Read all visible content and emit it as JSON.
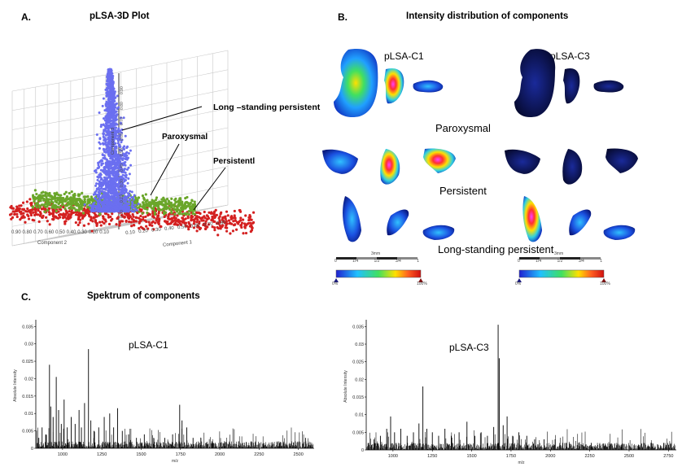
{
  "colors": {
    "cloud_blue": "#6b6ff0",
    "cloud_green": "#6aa62a",
    "cloud_red": "#d42020",
    "tissue_dark": "#0b1040"
  },
  "panels": {
    "a": {
      "letter": "A.",
      "title": "pLSA-3D Plot"
    },
    "b": {
      "letter": "B.",
      "title": "Intensity distribution of components"
    },
    "c": {
      "letter": "C.",
      "title": "Spektrum of components"
    }
  },
  "plot3d": {
    "annotations": [
      "Long –standing persistent",
      "Paroxysmal",
      "Persistentl"
    ],
    "axis1_label": "Component 1",
    "axis2_label": "Component 2",
    "axis3_label": "Component 3",
    "axis1_ticks": [
      "0.10",
      "0.20",
      "0.30",
      "0.40",
      "0.50",
      "0.60",
      "0.70",
      "0.80"
    ],
    "axis2_ticks": [
      "0.90",
      "0.80",
      "0.70",
      "0.60",
      "0.50",
      "0.40",
      "0.30",
      "0.20",
      "0.10"
    ],
    "axis3_ticks": [
      "0.10",
      "0.20",
      "0.30",
      "0.40",
      "0.50",
      "0.60",
      "0.70",
      "0.80",
      "0.90"
    ]
  },
  "intensity": {
    "component_labels": [
      "pLSA-C1",
      "pLSA-C3"
    ],
    "row_labels": [
      "Paroxysmal",
      "Persistent",
      "Long-standing persistent"
    ],
    "scalebar": {
      "label": "3mm",
      "ticks": [
        "0",
        "1/4",
        "1/2",
        "3/4",
        "1"
      ]
    },
    "colorbar": {
      "min": "0%",
      "max": "100%"
    }
  },
  "chart_data": [
    {
      "type": "bar",
      "title": "pLSA-C1",
      "xlabel": "m/z",
      "ylabel": "Absolute Intensity",
      "xlim": [
        830,
        2600
      ],
      "ylim": [
        0,
        0.036
      ],
      "xticks": [
        "1000",
        "1250",
        "1500",
        "1750",
        "2000",
        "2250",
        "2500"
      ],
      "yticks": [
        "0",
        "0.005",
        "0.01",
        "0.015",
        "0.02",
        "0.025",
        "0.03",
        "0.035"
      ],
      "peaks": [
        {
          "x": 845,
          "y": 0.003
        },
        {
          "x": 870,
          "y": 0.006
        },
        {
          "x": 895,
          "y": 0.004
        },
        {
          "x": 917,
          "y": 0.024
        },
        {
          "x": 925,
          "y": 0.012
        },
        {
          "x": 940,
          "y": 0.009
        },
        {
          "x": 960,
          "y": 0.0205
        },
        {
          "x": 975,
          "y": 0.011
        },
        {
          "x": 992,
          "y": 0.007
        },
        {
          "x": 1010,
          "y": 0.014
        },
        {
          "x": 1030,
          "y": 0.006
        },
        {
          "x": 1055,
          "y": 0.009
        },
        {
          "x": 1080,
          "y": 0.007
        },
        {
          "x": 1105,
          "y": 0.011
        },
        {
          "x": 1120,
          "y": 0.006
        },
        {
          "x": 1140,
          "y": 0.013
        },
        {
          "x": 1165,
          "y": 0.0285
        },
        {
          "x": 1180,
          "y": 0.008
        },
        {
          "x": 1200,
          "y": 0.005
        },
        {
          "x": 1230,
          "y": 0.006
        },
        {
          "x": 1265,
          "y": 0.009
        },
        {
          "x": 1300,
          "y": 0.01
        },
        {
          "x": 1325,
          "y": 0.006
        },
        {
          "x": 1350,
          "y": 0.0115
        },
        {
          "x": 1380,
          "y": 0.005
        },
        {
          "x": 1420,
          "y": 0.004
        },
        {
          "x": 1470,
          "y": 0.003
        },
        {
          "x": 1520,
          "y": 0.004
        },
        {
          "x": 1580,
          "y": 0.003
        },
        {
          "x": 1650,
          "y": 0.003
        },
        {
          "x": 1700,
          "y": 0.004
        },
        {
          "x": 1745,
          "y": 0.0125
        },
        {
          "x": 1760,
          "y": 0.008
        },
        {
          "x": 1790,
          "y": 0.006
        },
        {
          "x": 1830,
          "y": 0.003
        },
        {
          "x": 1880,
          "y": 0.003
        },
        {
          "x": 1950,
          "y": 0.002
        },
        {
          "x": 2030,
          "y": 0.002
        },
        {
          "x": 2120,
          "y": 0.002
        },
        {
          "x": 2200,
          "y": 0.002
        },
        {
          "x": 2280,
          "y": 0.0015
        },
        {
          "x": 2380,
          "y": 0.0015
        },
        {
          "x": 2480,
          "y": 0.002
        },
        {
          "x": 2545,
          "y": 0.003
        }
      ]
    },
    {
      "type": "bar",
      "title": "pLSA-C3",
      "xlabel": "m/z",
      "ylabel": "Absolute Intensity",
      "xlim": [
        830,
        2800
      ],
      "ylim": [
        0,
        0.036
      ],
      "xticks": [
        "1000",
        "1250",
        "1500",
        "1750",
        "2000",
        "2250",
        "2500",
        "2750"
      ],
      "yticks": [
        "0",
        "0.005",
        "0.01",
        "0.015",
        "0.02",
        "0.025",
        "0.03",
        "0.035"
      ],
      "peaks": [
        {
          "x": 845,
          "y": 0.002
        },
        {
          "x": 880,
          "y": 0.003
        },
        {
          "x": 920,
          "y": 0.004
        },
        {
          "x": 960,
          "y": 0.006
        },
        {
          "x": 985,
          "y": 0.0095
        },
        {
          "x": 1010,
          "y": 0.005
        },
        {
          "x": 1050,
          "y": 0.006
        },
        {
          "x": 1090,
          "y": 0.004
        },
        {
          "x": 1130,
          "y": 0.005
        },
        {
          "x": 1165,
          "y": 0.0075
        },
        {
          "x": 1190,
          "y": 0.018
        },
        {
          "x": 1215,
          "y": 0.006
        },
        {
          "x": 1250,
          "y": 0.005
        },
        {
          "x": 1290,
          "y": 0.004
        },
        {
          "x": 1330,
          "y": 0.006
        },
        {
          "x": 1370,
          "y": 0.004
        },
        {
          "x": 1420,
          "y": 0.005
        },
        {
          "x": 1470,
          "y": 0.008
        },
        {
          "x": 1520,
          "y": 0.004
        },
        {
          "x": 1560,
          "y": 0.005
        },
        {
          "x": 1600,
          "y": 0.004
        },
        {
          "x": 1640,
          "y": 0.0065
        },
        {
          "x": 1668,
          "y": 0.0355
        },
        {
          "x": 1675,
          "y": 0.026
        },
        {
          "x": 1700,
          "y": 0.007
        },
        {
          "x": 1725,
          "y": 0.0095
        },
        {
          "x": 1760,
          "y": 0.004
        },
        {
          "x": 1800,
          "y": 0.005
        },
        {
          "x": 1850,
          "y": 0.004
        },
        {
          "x": 1900,
          "y": 0.003
        },
        {
          "x": 1960,
          "y": 0.003
        },
        {
          "x": 2030,
          "y": 0.003
        },
        {
          "x": 2100,
          "y": 0.002
        },
        {
          "x": 2180,
          "y": 0.002
        },
        {
          "x": 2260,
          "y": 0.002
        },
        {
          "x": 2350,
          "y": 0.0015
        },
        {
          "x": 2450,
          "y": 0.0015
        },
        {
          "x": 2560,
          "y": 0.0015
        },
        {
          "x": 2650,
          "y": 0.001
        },
        {
          "x": 2720,
          "y": 0.002
        }
      ]
    }
  ]
}
